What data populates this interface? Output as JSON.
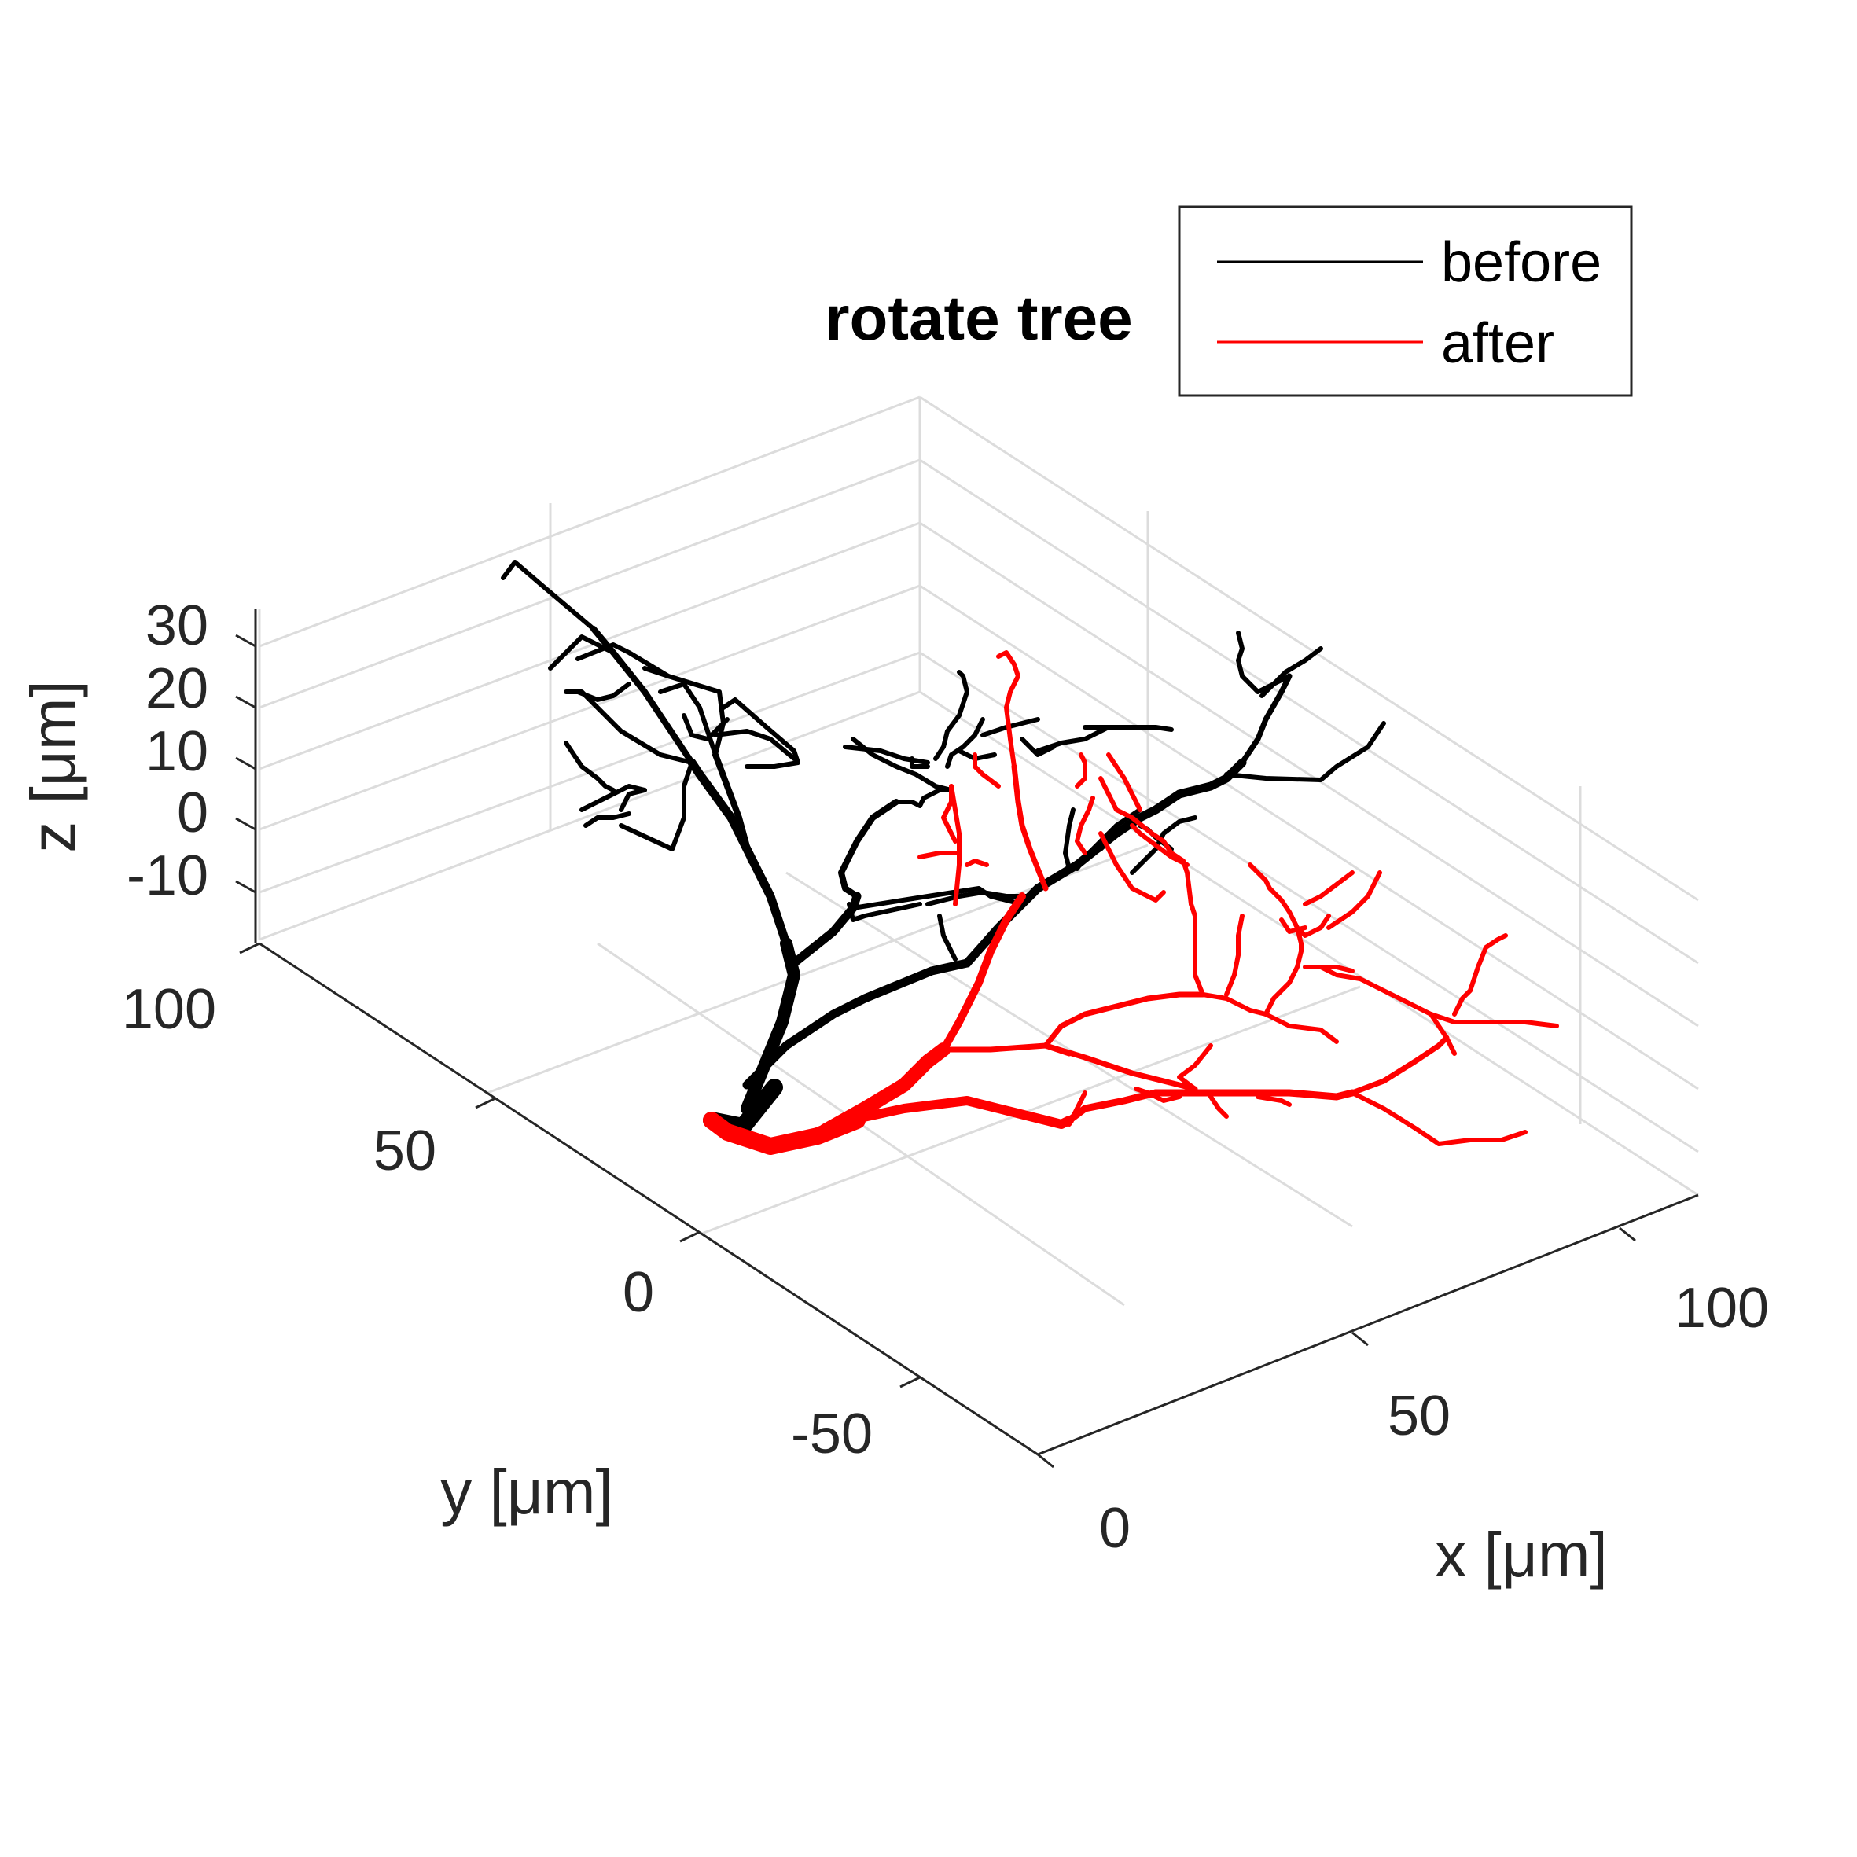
{
  "chart_data": {
    "type": "line",
    "title": "rotate tree",
    "xlabel": "x [μm]",
    "ylabel": "y [μm]",
    "zlabel": "z [μm]",
    "x_ticks": [
      "0",
      "50",
      "100"
    ],
    "y_ticks": [
      "-50",
      "0",
      "50",
      "100"
    ],
    "z_ticks": [
      "-10",
      "0",
      "10",
      "20",
      "30"
    ],
    "legend": {
      "position": "top-right",
      "entries": [
        "before",
        "after"
      ]
    },
    "grid": true,
    "series": [
      {
        "name": "before",
        "color": "#000000"
      },
      {
        "name": "after",
        "color": "#ff0000"
      }
    ]
  }
}
